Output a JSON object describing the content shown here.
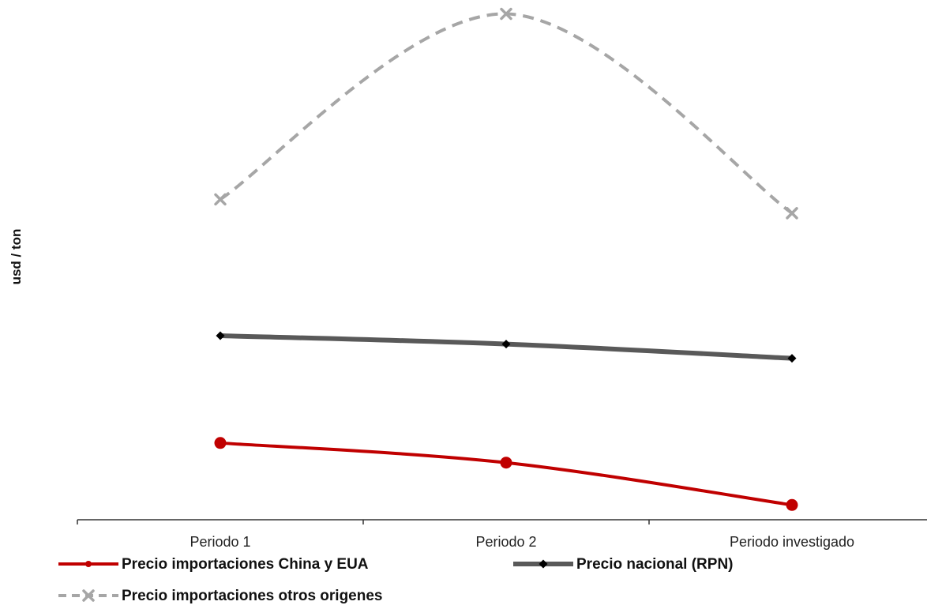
{
  "chart_data": {
    "type": "line",
    "title": "",
    "xlabel": "",
    "ylabel": "usd / ton",
    "categories": [
      "Periodo 1",
      "Periodo 2",
      "Periodo investigado"
    ],
    "ylim": [
      0,
      100
    ],
    "grid": false,
    "y_tick_labels_shown": false,
    "legend_position": "bottom",
    "series": [
      {
        "name": "Precio importaciones China y EUA",
        "values": [
          15.6,
          11.6,
          3.0
        ],
        "color": "#c00000",
        "line_style": "solid",
        "marker": "circle"
      },
      {
        "name": "Precio nacional (RPN)",
        "values": [
          37.4,
          35.7,
          32.8
        ],
        "color": "#595959",
        "line_style": "solid",
        "marker": "diamond"
      },
      {
        "name": "Precio importaciones otros origenes",
        "values": [
          65.1,
          102.8,
          62.3
        ],
        "color": "#a6a6a6",
        "line_style": "dashed",
        "marker": "x"
      }
    ]
  }
}
